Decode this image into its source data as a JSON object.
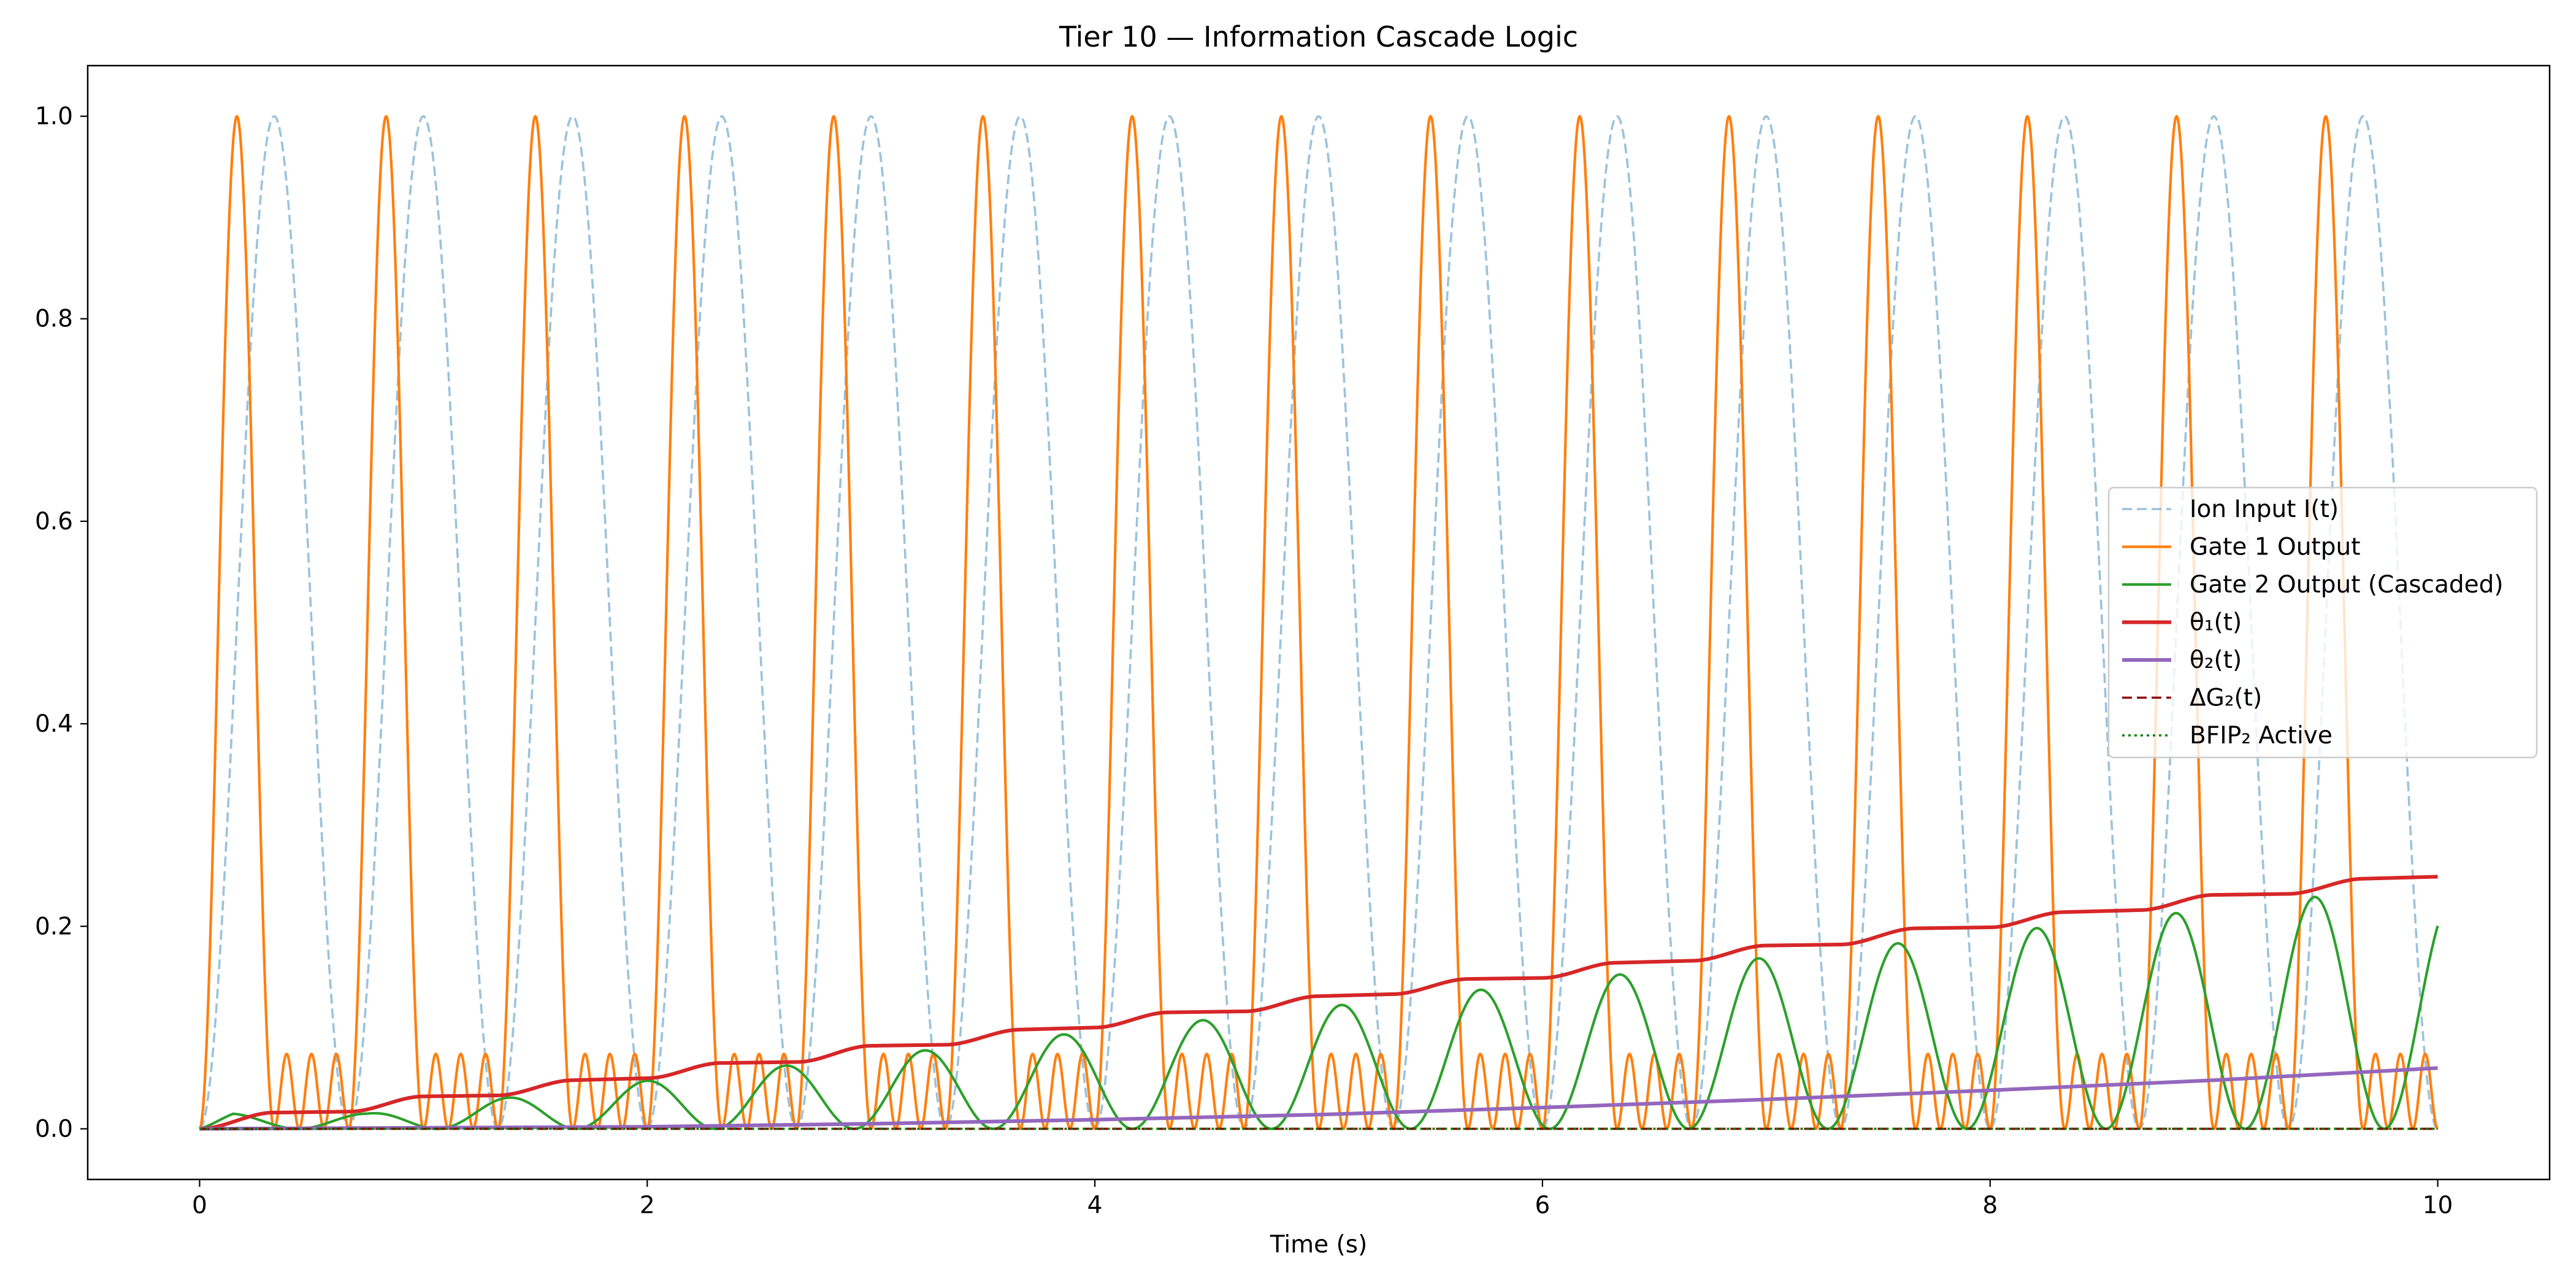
{
  "chart_data": {
    "type": "line",
    "title": "Tier 10 — Information Cascade Logic",
    "xlabel": "Time (s)",
    "ylabel": "",
    "xlim": [
      -0.5,
      10.5
    ],
    "ylim": [
      -0.05,
      1.05
    ],
    "x_ticks": [
      0,
      2,
      4,
      6,
      8,
      10
    ],
    "y_ticks": [
      0.0,
      0.2,
      0.4,
      0.6,
      0.8,
      1.0
    ],
    "x_tick_labels": [
      "0",
      "2",
      "4",
      "6",
      "8",
      "10"
    ],
    "y_tick_labels": [
      "0.0",
      "0.2",
      "0.4",
      "0.6",
      "0.8",
      "1.0"
    ],
    "grid": false,
    "legend_position": "center-right",
    "x_range": [
      0,
      10
    ],
    "series": [
      {
        "name": "Ion Input I(t)",
        "color": "#1f77b4",
        "style": "dashed",
        "opacity": 0.45,
        "description_values": {
          "form": "sin²(πx/0.667)",
          "period_s": 0.667,
          "min": 0.0,
          "max": 1.0
        }
      },
      {
        "name": "Gate 1 Output",
        "color": "#ff7f0e",
        "style": "solid",
        "description_values": {
          "major_peak": 1.0,
          "minor_peak": 0.074,
          "major_peak_times_s": [
            0.167,
            0.833,
            1.5,
            2.167,
            2.833,
            3.5,
            4.167,
            4.833,
            5.5,
            6.167,
            6.833,
            7.5,
            8.167,
            8.833,
            9.5
          ]
        }
      },
      {
        "name": "Gate 2 Output (Cascaded)",
        "color": "#2ca02c",
        "style": "solid",
        "peaks": {
          "x": [
            0.75,
            1.35,
            1.98,
            2.6,
            3.22,
            3.85,
            4.47,
            5.09,
            5.71,
            6.33,
            6.95,
            7.58,
            8.2,
            8.83,
            9.45
          ],
          "y": [
            0.015,
            0.03,
            0.047,
            0.062,
            0.077,
            0.093,
            0.107,
            0.122,
            0.137,
            0.152,
            0.168,
            0.183,
            0.198,
            0.213,
            0.229
          ]
        },
        "end_value": 0.2
      },
      {
        "name": "θ₁(t)",
        "color": "#d62728",
        "style": "solid",
        "points": {
          "x": [
            0,
            0.33,
            0.67,
            1.0,
            1.33,
            1.67,
            2.0,
            2.33,
            2.67,
            3.0,
            3.33,
            3.67,
            4.0,
            4.33,
            4.67,
            5.0,
            5.33,
            5.67,
            6.0,
            6.33,
            6.67,
            7.0,
            7.33,
            7.67,
            8.0,
            8.33,
            8.67,
            9.0,
            9.33,
            9.67,
            10.0
          ],
          "y": [
            0,
            0.016,
            0.017,
            0.032,
            0.033,
            0.048,
            0.05,
            0.065,
            0.066,
            0.082,
            0.083,
            0.098,
            0.1,
            0.115,
            0.116,
            0.131,
            0.133,
            0.148,
            0.149,
            0.164,
            0.166,
            0.181,
            0.182,
            0.198,
            0.199,
            0.214,
            0.216,
            0.231,
            0.232,
            0.247,
            0.249
          ]
        }
      },
      {
        "name": "θ₂(t)",
        "color": "#9467bd",
        "style": "solid",
        "points": {
          "x": [
            0,
            1,
            2,
            3,
            4,
            5,
            6,
            7,
            8,
            9,
            10
          ],
          "y": [
            0,
            0.001,
            0.002,
            0.005,
            0.009,
            0.014,
            0.021,
            0.029,
            0.038,
            0.048,
            0.06
          ]
        }
      },
      {
        "name": "ΔG₂(t)",
        "color": "#8b0000",
        "style": "dashed",
        "points": {
          "x": [
            0,
            10
          ],
          "y": [
            0,
            0
          ]
        }
      },
      {
        "name": "BFIP₂ Active",
        "color": "#008000",
        "style": "dotted",
        "points": {
          "x": [
            0,
            10
          ],
          "y": [
            0,
            0
          ]
        }
      }
    ]
  }
}
